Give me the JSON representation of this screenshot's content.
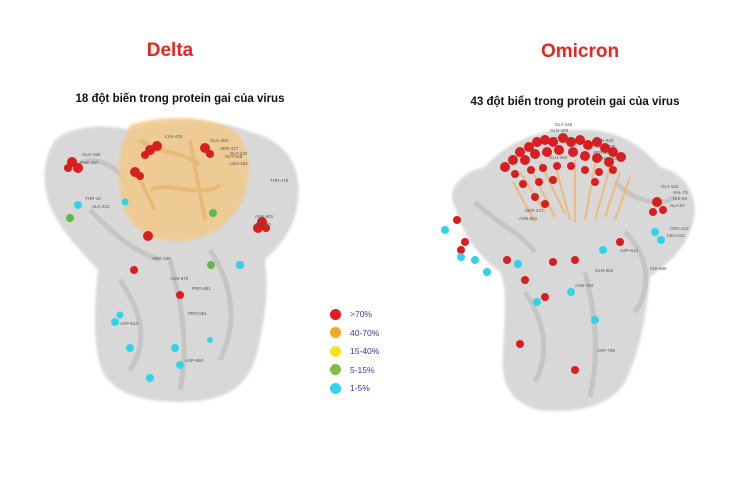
{
  "panels": {
    "delta": {
      "title": "Delta",
      "subtitle": "18 đột biến trong protein gai của virus"
    },
    "omicron": {
      "title": "Omicron",
      "subtitle": "43 đột biến trong protein gai của virus"
    }
  },
  "legend": [
    {
      "label": ">70%",
      "color": "#e31b1b"
    },
    {
      "label": "40-70%",
      "color": "#f5a623"
    },
    {
      "label": "15-40%",
      "color": "#f6e21c"
    },
    {
      "label": "5-15%",
      "color": "#7cc043"
    },
    {
      "label": "1-5%",
      "color": "#2fd4e8"
    }
  ],
  "colors": {
    "title": "#e8251e",
    "protein_body": "#d4d4d4",
    "receptor_binding_domain": "#f3c98a"
  },
  "residue_labels": {
    "delta": [
      "GLU-156",
      "PHE-157",
      "LYS-478",
      "GLU-484",
      "THR-478",
      "LEU-452",
      "ASP-614",
      "PRO-681",
      "ASP-950",
      "THR-19",
      "GLY-142",
      "ARG-158",
      "ALA-222",
      "ASN-501",
      "VAL-70",
      "SER-477",
      "GLY-446",
      "ASN-679",
      "PRO-681"
    ],
    "omicron": [
      "GLY-446",
      "GLN-493",
      "GLN-498",
      "SER-477",
      "THR-478",
      "GLU-484",
      "ASN-501",
      "TYR-505",
      "SER-371",
      "ASN-764",
      "ASP-796",
      "GLN-954",
      "HIS-655",
      "ARG-214",
      "ALA-67",
      "ASP-614",
      "HIS-69",
      "VAL-70",
      "LEU-212",
      "GLY-142",
      "ASN-440"
    ]
  }
}
